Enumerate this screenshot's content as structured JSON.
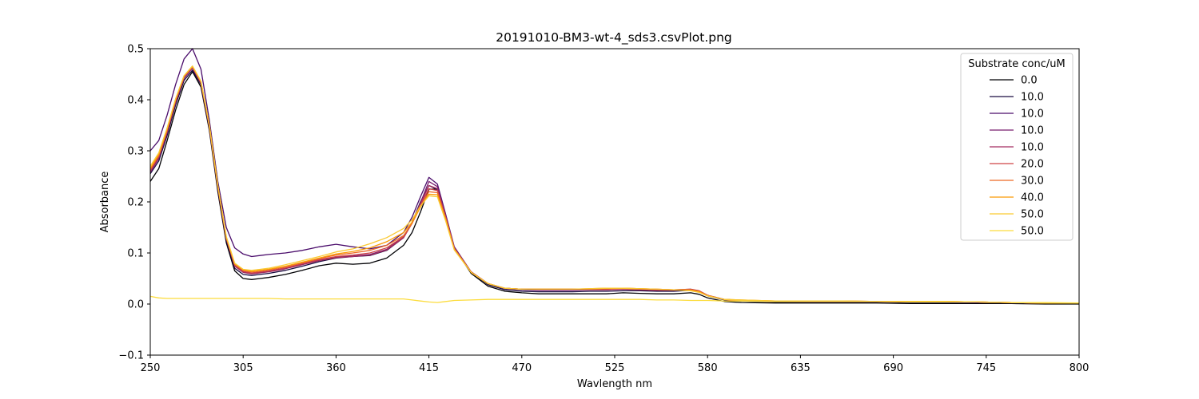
{
  "chart_data": {
    "type": "line",
    "title": "20191010-BM3-wt-4_sds3.csvPlot.png",
    "xlabel": "Wavlength nm",
    "ylabel": "Absorbance",
    "xlim": [
      250,
      800
    ],
    "ylim": [
      -0.1,
      0.5
    ],
    "xticks": [
      "250",
      "305",
      "360",
      "415",
      "470",
      "525",
      "580",
      "635",
      "690",
      "745",
      "800"
    ],
    "yticks": [
      "−0.1",
      "0.0",
      "0.1",
      "0.2",
      "0.3",
      "0.4",
      "0.5"
    ],
    "grid": false,
    "legend": {
      "title": "Substrate conc/uM",
      "position": "top-right"
    },
    "x": [
      250,
      255,
      260,
      265,
      270,
      275,
      280,
      285,
      290,
      295,
      300,
      305,
      310,
      315,
      320,
      330,
      340,
      350,
      360,
      370,
      380,
      390,
      400,
      405,
      410,
      415,
      420,
      425,
      430,
      440,
      450,
      460,
      470,
      480,
      490,
      500,
      510,
      520,
      530,
      540,
      550,
      560,
      570,
      575,
      580,
      590,
      600,
      620,
      640,
      660,
      680,
      700,
      720,
      740,
      760,
      780,
      800
    ],
    "series": [
      {
        "name": "0.0",
        "color": "#000004",
        "values": [
          0.24,
          0.265,
          0.32,
          0.38,
          0.43,
          0.455,
          0.425,
          0.34,
          0.22,
          0.12,
          0.065,
          0.05,
          0.048,
          0.05,
          0.052,
          0.058,
          0.066,
          0.075,
          0.08,
          0.078,
          0.08,
          0.09,
          0.115,
          0.14,
          0.18,
          0.225,
          0.225,
          0.17,
          0.11,
          0.06,
          0.035,
          0.025,
          0.022,
          0.02,
          0.02,
          0.02,
          0.02,
          0.02,
          0.022,
          0.021,
          0.02,
          0.02,
          0.022,
          0.019,
          0.012,
          0.005,
          0.003,
          0.002,
          0.002,
          0.002,
          0.002,
          0.001,
          0.001,
          0.001,
          0.001,
          0.0,
          0.0
        ]
      },
      {
        "name": "10.0",
        "color": "#1b0c41",
        "values": [
          0.255,
          0.28,
          0.33,
          0.39,
          0.438,
          0.458,
          0.43,
          0.345,
          0.226,
          0.125,
          0.07,
          0.058,
          0.056,
          0.058,
          0.06,
          0.066,
          0.074,
          0.083,
          0.09,
          0.093,
          0.095,
          0.105,
          0.13,
          0.16,
          0.2,
          0.232,
          0.224,
          0.17,
          0.11,
          0.062,
          0.038,
          0.028,
          0.025,
          0.024,
          0.024,
          0.024,
          0.025,
          0.025,
          0.026,
          0.026,
          0.025,
          0.025,
          0.027,
          0.024,
          0.016,
          0.008,
          0.006,
          0.004,
          0.004,
          0.004,
          0.004,
          0.003,
          0.003,
          0.003,
          0.002,
          0.002,
          0.002
        ]
      },
      {
        "name": "10.0",
        "color": "#4a0c6b",
        "values": [
          0.3,
          0.32,
          0.37,
          0.43,
          0.48,
          0.5,
          0.46,
          0.36,
          0.24,
          0.15,
          0.11,
          0.098,
          0.093,
          0.095,
          0.097,
          0.1,
          0.105,
          0.112,
          0.117,
          0.112,
          0.108,
          0.115,
          0.14,
          0.17,
          0.21,
          0.248,
          0.235,
          0.175,
          0.112,
          0.063,
          0.04,
          0.03,
          0.028,
          0.027,
          0.027,
          0.027,
          0.028,
          0.028,
          0.029,
          0.028,
          0.027,
          0.027,
          0.028,
          0.025,
          0.017,
          0.009,
          0.007,
          0.005,
          0.004,
          0.004,
          0.004,
          0.004,
          0.004,
          0.003,
          0.003,
          0.002,
          0.002
        ]
      },
      {
        "name": "10.0",
        "color": "#781c6d",
        "values": [
          0.258,
          0.285,
          0.335,
          0.395,
          0.442,
          0.462,
          0.432,
          0.346,
          0.228,
          0.128,
          0.075,
          0.063,
          0.06,
          0.062,
          0.064,
          0.07,
          0.078,
          0.086,
          0.092,
          0.094,
          0.097,
          0.107,
          0.132,
          0.16,
          0.198,
          0.24,
          0.23,
          0.172,
          0.111,
          0.063,
          0.04,
          0.031,
          0.029,
          0.029,
          0.029,
          0.029,
          0.029,
          0.029,
          0.03,
          0.029,
          0.028,
          0.028,
          0.029,
          0.026,
          0.017,
          0.009,
          0.007,
          0.005,
          0.005,
          0.005,
          0.005,
          0.005,
          0.005,
          0.004,
          0.003,
          0.002,
          0.002
        ]
      },
      {
        "name": "10.0",
        "color": "#a52c60",
        "values": [
          0.26,
          0.287,
          0.337,
          0.396,
          0.443,
          0.463,
          0.433,
          0.347,
          0.229,
          0.128,
          0.074,
          0.062,
          0.059,
          0.061,
          0.063,
          0.069,
          0.077,
          0.085,
          0.091,
          0.093,
          0.096,
          0.106,
          0.13,
          0.158,
          0.196,
          0.232,
          0.226,
          0.171,
          0.11,
          0.063,
          0.04,
          0.031,
          0.029,
          0.028,
          0.028,
          0.028,
          0.028,
          0.028,
          0.029,
          0.028,
          0.027,
          0.027,
          0.028,
          0.025,
          0.017,
          0.009,
          0.007,
          0.005,
          0.005,
          0.005,
          0.005,
          0.004,
          0.004,
          0.004,
          0.003,
          0.002,
          0.002
        ]
      },
      {
        "name": "20.0",
        "color": "#cf4446",
        "values": [
          0.262,
          0.289,
          0.339,
          0.398,
          0.445,
          0.464,
          0.434,
          0.348,
          0.23,
          0.129,
          0.076,
          0.064,
          0.061,
          0.063,
          0.065,
          0.071,
          0.079,
          0.087,
          0.093,
          0.096,
          0.1,
          0.11,
          0.132,
          0.158,
          0.193,
          0.226,
          0.222,
          0.169,
          0.109,
          0.063,
          0.04,
          0.031,
          0.029,
          0.029,
          0.029,
          0.029,
          0.029,
          0.029,
          0.03,
          0.029,
          0.028,
          0.028,
          0.029,
          0.026,
          0.017,
          0.009,
          0.007,
          0.005,
          0.005,
          0.005,
          0.005,
          0.004,
          0.004,
          0.004,
          0.003,
          0.002,
          0.002
        ]
      },
      {
        "name": "30.0",
        "color": "#ed6925",
        "values": [
          0.264,
          0.291,
          0.341,
          0.4,
          0.446,
          0.465,
          0.435,
          0.349,
          0.231,
          0.13,
          0.078,
          0.066,
          0.063,
          0.065,
          0.067,
          0.073,
          0.081,
          0.089,
          0.096,
          0.1,
          0.105,
          0.115,
          0.134,
          0.158,
          0.19,
          0.22,
          0.218,
          0.167,
          0.108,
          0.062,
          0.04,
          0.031,
          0.029,
          0.029,
          0.029,
          0.029,
          0.029,
          0.03,
          0.031,
          0.03,
          0.029,
          0.028,
          0.028,
          0.025,
          0.017,
          0.009,
          0.007,
          0.006,
          0.006,
          0.006,
          0.005,
          0.005,
          0.005,
          0.004,
          0.003,
          0.002,
          0.002
        ]
      },
      {
        "name": "40.0",
        "color": "#fb9b06",
        "values": [
          0.266,
          0.293,
          0.343,
          0.401,
          0.447,
          0.466,
          0.436,
          0.35,
          0.232,
          0.131,
          0.079,
          0.067,
          0.064,
          0.066,
          0.068,
          0.074,
          0.082,
          0.09,
          0.098,
          0.103,
          0.11,
          0.122,
          0.14,
          0.16,
          0.19,
          0.215,
          0.214,
          0.165,
          0.107,
          0.062,
          0.04,
          0.031,
          0.029,
          0.029,
          0.029,
          0.029,
          0.03,
          0.031,
          0.031,
          0.03,
          0.029,
          0.028,
          0.027,
          0.024,
          0.016,
          0.009,
          0.008,
          0.006,
          0.006,
          0.006,
          0.005,
          0.005,
          0.005,
          0.004,
          0.003,
          0.002,
          0.002
        ]
      },
      {
        "name": "50.0",
        "color": "#f9c932",
        "values": [
          0.27,
          0.296,
          0.345,
          0.402,
          0.447,
          0.466,
          0.436,
          0.35,
          0.232,
          0.132,
          0.08,
          0.068,
          0.066,
          0.068,
          0.07,
          0.077,
          0.085,
          0.093,
          0.102,
          0.108,
          0.118,
          0.13,
          0.148,
          0.165,
          0.192,
          0.212,
          0.21,
          0.162,
          0.106,
          0.062,
          0.04,
          0.031,
          0.029,
          0.029,
          0.029,
          0.029,
          0.03,
          0.031,
          0.031,
          0.03,
          0.029,
          0.028,
          0.026,
          0.023,
          0.016,
          0.009,
          0.008,
          0.006,
          0.006,
          0.006,
          0.005,
          0.005,
          0.005,
          0.004,
          0.003,
          0.002,
          0.002
        ]
      },
      {
        "name": "50.0",
        "color": "#fcdc3c",
        "values": [
          0.015,
          0.012,
          0.011,
          0.011,
          0.011,
          0.011,
          0.011,
          0.011,
          0.011,
          0.011,
          0.011,
          0.011,
          0.011,
          0.011,
          0.011,
          0.01,
          0.01,
          0.01,
          0.01,
          0.01,
          0.01,
          0.01,
          0.01,
          0.008,
          0.006,
          0.004,
          0.003,
          0.005,
          0.007,
          0.008,
          0.009,
          0.009,
          0.009,
          0.009,
          0.009,
          0.009,
          0.009,
          0.009,
          0.009,
          0.009,
          0.008,
          0.008,
          0.007,
          0.007,
          0.007,
          0.006,
          0.006,
          0.005,
          0.005,
          0.005,
          0.005,
          0.004,
          0.004,
          0.004,
          0.003,
          0.003,
          0.002
        ]
      }
    ]
  }
}
